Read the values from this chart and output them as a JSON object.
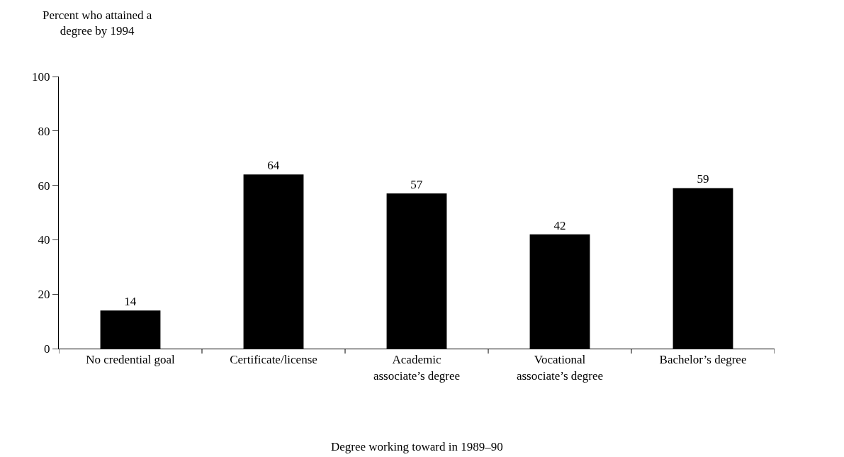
{
  "chart_data": {
    "type": "bar",
    "ylabel": "Percent who attained a\ndegree by 1994",
    "xlabel": "Degree working toward in 1989–90",
    "categories": [
      "No credential goal",
      "Certificate/license",
      "Academic\nassociate’s degree",
      "Vocational\nassociate’s degree",
      "Bachelor’s degree"
    ],
    "values": [
      14,
      64,
      57,
      42,
      59
    ],
    "color": "#000000",
    "ylim": [
      0,
      100
    ],
    "yticks": [
      0,
      20,
      40,
      60,
      80,
      100
    ],
    "data_labels": true
  }
}
